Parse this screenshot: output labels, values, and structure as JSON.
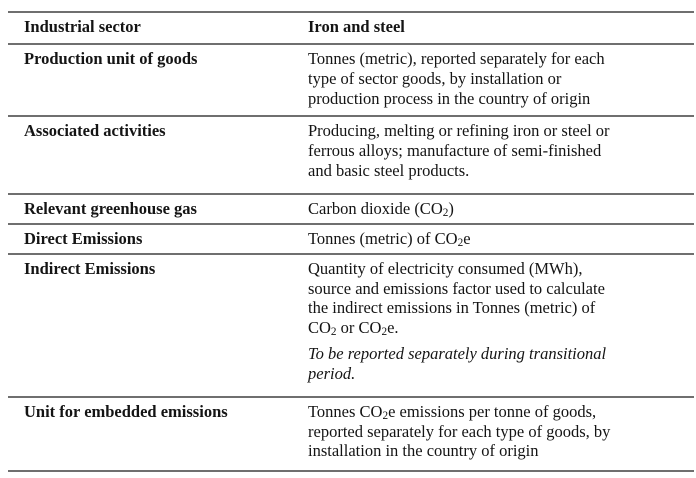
{
  "colors": {
    "background": "#ffffff",
    "text": "#141414",
    "rule": "#6f6f6f"
  },
  "table": {
    "rows": [
      {
        "key": "industrial-sector",
        "header": true,
        "label": "Industrial sector",
        "value": [
          {
            "lines": [
              [
                {
                  "t": "Iron and steel"
                }
              ]
            ]
          }
        ]
      },
      {
        "key": "production-unit-of-goods",
        "label": "Production unit of goods",
        "value": [
          {
            "lines": [
              [
                {
                  "t": "Tonnes (metric), reported separately for each"
                }
              ],
              [
                {
                  "t": "type of sector goods, by installation or"
                }
              ],
              [
                {
                  "t": "production process in the country of origin"
                }
              ]
            ]
          }
        ]
      },
      {
        "key": "associated-activities",
        "label": "Associated activities",
        "value": [
          {
            "lines": [
              [
                {
                  "t": "Producing, melting or refining iron or steel or"
                }
              ],
              [
                {
                  "t": "ferrous alloys; manufacture of semi-finished"
                }
              ],
              [
                {
                  "t": "and basic steel products."
                }
              ]
            ]
          }
        ]
      },
      {
        "key": "relevant-greenhouse-gas",
        "label": "Relevant greenhouse gas",
        "value": [
          {
            "lines": [
              [
                {
                  "t": "Carbon dioxide (CO"
                },
                {
                  "t": "2",
                  "sub": true
                },
                {
                  "t": ")"
                }
              ]
            ]
          }
        ]
      },
      {
        "key": "direct-emissions",
        "label": "Direct Emissions",
        "value": [
          {
            "lines": [
              [
                {
                  "t": "Tonnes (metric) of CO"
                },
                {
                  "t": "2",
                  "sub": true
                },
                {
                  "t": "e"
                }
              ]
            ]
          }
        ]
      },
      {
        "key": "indirect-emissions",
        "label": "Indirect Emissions",
        "value": [
          {
            "lines": [
              [
                {
                  "t": "Quantity of electricity consumed (MWh),"
                }
              ],
              [
                {
                  "t": "source and emissions factor used to calculate"
                }
              ],
              [
                {
                  "t": "the indirect emissions in Tonnes (metric) of"
                }
              ],
              [
                {
                  "t": "CO"
                },
                {
                  "t": "2",
                  "sub": true
                },
                {
                  "t": " or CO"
                },
                {
                  "t": "2",
                  "sub": true
                },
                {
                  "t": "e."
                }
              ]
            ]
          },
          {
            "italic": true,
            "lines": [
              [
                {
                  "t": "To be reported separately during transitional"
                }
              ],
              [
                {
                  "t": "period."
                }
              ]
            ]
          }
        ]
      },
      {
        "key": "unit-for-embedded-emissions",
        "label": "Unit for embedded emissions",
        "value": [
          {
            "lines": [
              [
                {
                  "t": "Tonnes CO"
                },
                {
                  "t": "2",
                  "sub": true
                },
                {
                  "t": "e emissions per tonne of goods,"
                }
              ],
              [
                {
                  "t": "reported separately for each type of goods, by"
                }
              ],
              [
                {
                  "t": "installation in the country of origin"
                }
              ]
            ]
          }
        ]
      }
    ]
  }
}
